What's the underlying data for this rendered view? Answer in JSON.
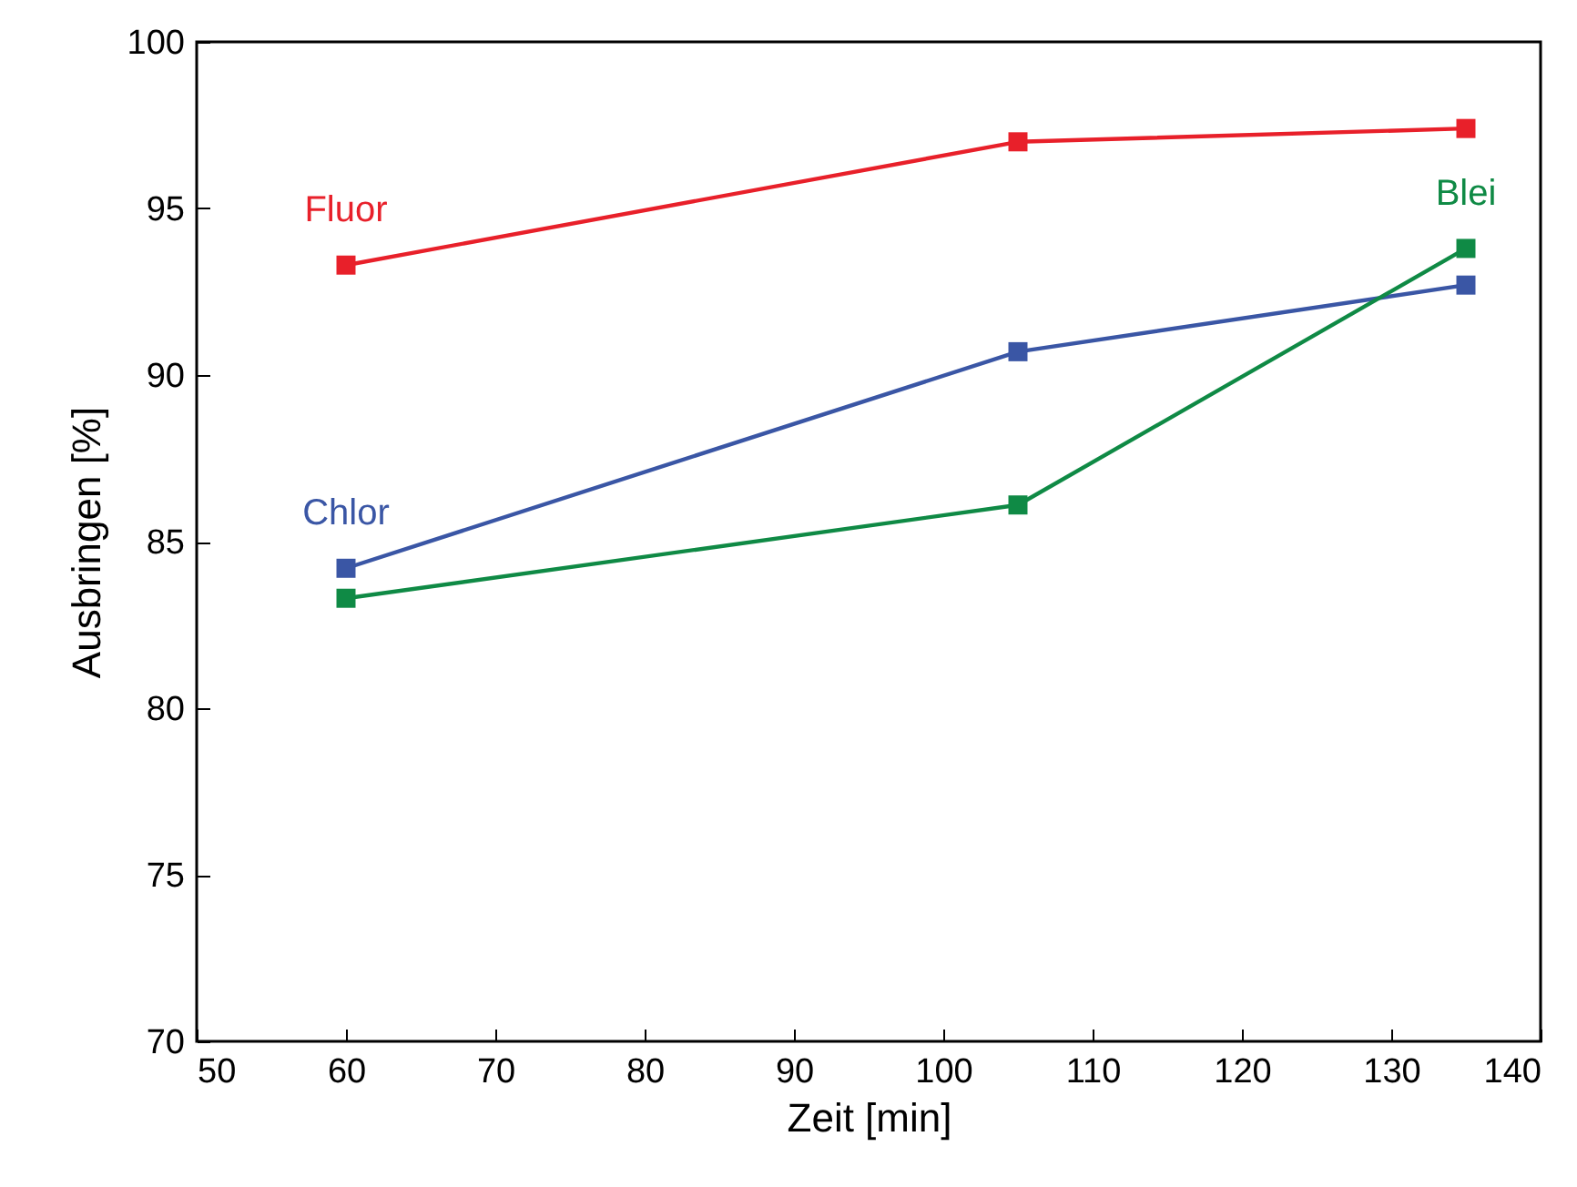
{
  "chart_data": {
    "type": "line",
    "xlabel": "Zeit [min]",
    "ylabel": "Ausbringen [%]",
    "x": [
      60,
      105,
      135
    ],
    "series": [
      {
        "name": "Fluor",
        "color": "#e8202a",
        "values": [
          93.3,
          97.0,
          97.4
        ]
      },
      {
        "name": "Chlor",
        "color": "#3a56a5",
        "values": [
          84.2,
          90.7,
          92.7
        ]
      },
      {
        "name": "Blei",
        "color": "#0f8a45",
        "values": [
          83.3,
          86.1,
          93.8
        ]
      }
    ],
    "xlim": [
      50,
      140
    ],
    "xticks": [
      50,
      60,
      70,
      80,
      90,
      100,
      110,
      120,
      130,
      140
    ],
    "ylim": [
      70,
      100
    ],
    "yticks": [
      70,
      75,
      80,
      85,
      90,
      95,
      100
    ],
    "grid": false,
    "legend": false,
    "marker": "square",
    "line_style": "solid"
  }
}
